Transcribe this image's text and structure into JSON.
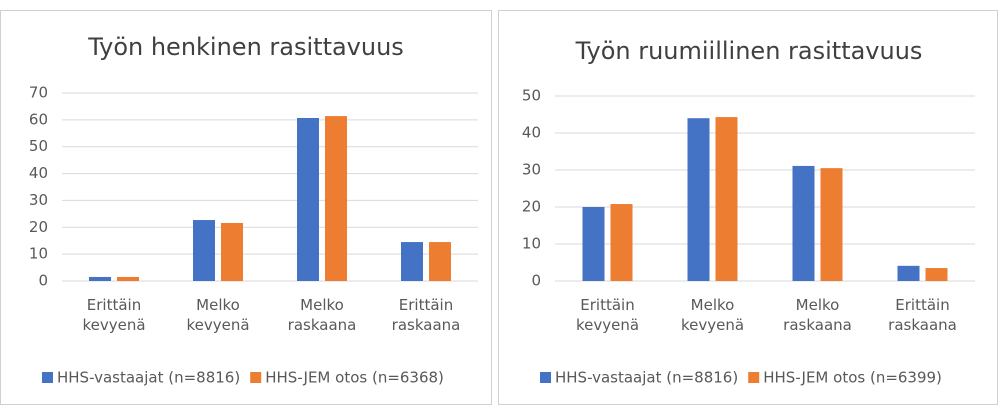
{
  "chart_data": [
    {
      "type": "bar",
      "title": "Työn henkinen rasittavuus",
      "categories": [
        "Erittäin kevyenä",
        "Melko kevyenä",
        "Melko raskaana",
        "Erittäin raskaana"
      ],
      "series": [
        {
          "name": "HHS-vastaajat (n=8816)",
          "color": "#4472c4",
          "values": [
            1.5,
            22.7,
            60.7,
            14.5
          ]
        },
        {
          "name": "HHS-JEM otos (n=6368)",
          "color": "#ed7d31",
          "values": [
            1.5,
            21.6,
            61.4,
            14.5
          ]
        }
      ],
      "ylim": [
        0,
        70
      ],
      "yticks": [
        0,
        10,
        20,
        30,
        40,
        50,
        60,
        70
      ],
      "grid": true
    },
    {
      "type": "bar",
      "title": "Työn ruumiillinen rasittavuus",
      "categories": [
        "Erittäin kevyenä",
        "Melko kevyenä",
        "Melko raskaana",
        "Erittäin raskaana"
      ],
      "series": [
        {
          "name": "HHS-vastaajat (n=8816)",
          "color": "#4472c4",
          "values": [
            20.0,
            44.0,
            31.1,
            4.1
          ]
        },
        {
          "name": "HHS-JEM otos (n=6399)",
          "color": "#ed7d31",
          "values": [
            20.8,
            44.3,
            30.5,
            3.5
          ]
        }
      ],
      "ylim": [
        0,
        50
      ],
      "yticks": [
        0,
        10,
        20,
        30,
        40,
        50
      ],
      "grid": true
    }
  ]
}
